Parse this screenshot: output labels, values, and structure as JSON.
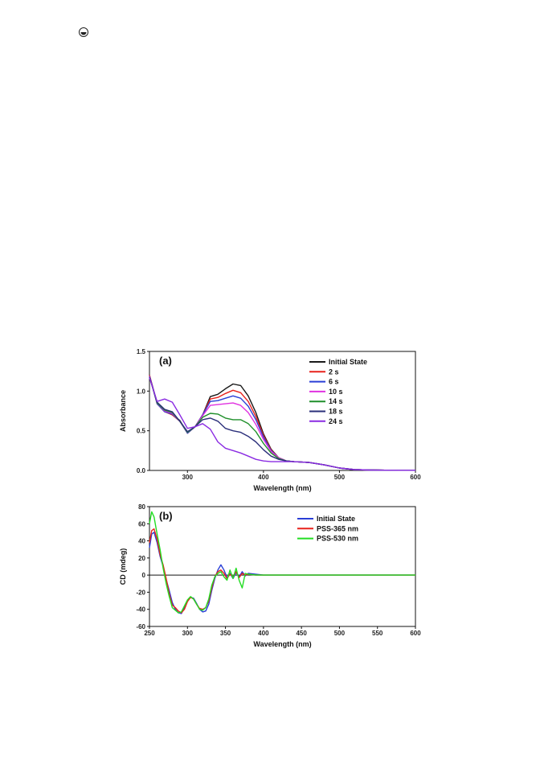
{
  "page": {
    "icon": "circle-mark-icon"
  },
  "chart_data": [
    {
      "type": "line",
      "panel_label": "(a)",
      "xlabel": "Wavelength (nm)",
      "ylabel": "Absorbance",
      "xlim": [
        250,
        600
      ],
      "ylim": [
        0.0,
        1.5
      ],
      "xticks": [
        "300",
        "400",
        "500",
        "600"
      ],
      "yticks": [
        "0.0",
        "0.5",
        "1.0",
        "1.5"
      ],
      "legend_position": "top-right",
      "grid": false,
      "series": [
        {
          "name": "Initial State",
          "color": "#1a1a1a",
          "x": [
            250,
            260,
            270,
            280,
            290,
            300,
            310,
            320,
            330,
            340,
            350,
            360,
            370,
            380,
            390,
            400,
            410,
            420,
            430,
            440,
            460,
            480,
            500,
            520,
            540,
            560,
            580,
            600
          ],
          "y": [
            1.2,
            0.85,
            0.75,
            0.7,
            0.63,
            0.47,
            0.55,
            0.7,
            0.93,
            0.96,
            1.03,
            1.09,
            1.07,
            0.94,
            0.73,
            0.46,
            0.27,
            0.16,
            0.12,
            0.11,
            0.1,
            0.07,
            0.03,
            0.01,
            0.005,
            0.003,
            0.002,
            0.002
          ]
        },
        {
          "name": "2 s",
          "color": "#e8221c",
          "x": [
            250,
            260,
            270,
            280,
            290,
            300,
            310,
            320,
            330,
            340,
            350,
            360,
            370,
            380,
            390,
            400,
            410,
            420,
            430,
            440,
            460,
            480,
            500,
            520,
            540,
            560,
            580,
            600
          ],
          "y": [
            1.2,
            0.84,
            0.74,
            0.7,
            0.62,
            0.47,
            0.55,
            0.7,
            0.9,
            0.92,
            0.97,
            1.01,
            0.98,
            0.87,
            0.68,
            0.44,
            0.26,
            0.16,
            0.12,
            0.11,
            0.1,
            0.07,
            0.03,
            0.01,
            0.005,
            0.003,
            0.002,
            0.002
          ]
        },
        {
          "name": "6 s",
          "color": "#2a3fd6",
          "x": [
            250,
            260,
            270,
            280,
            290,
            300,
            310,
            320,
            330,
            340,
            350,
            360,
            370,
            380,
            390,
            400,
            410,
            420,
            430,
            440,
            460,
            480,
            500,
            520,
            540,
            560,
            580,
            600
          ],
          "y": [
            1.19,
            0.84,
            0.74,
            0.71,
            0.62,
            0.47,
            0.55,
            0.7,
            0.87,
            0.88,
            0.91,
            0.94,
            0.91,
            0.81,
            0.64,
            0.42,
            0.25,
            0.16,
            0.12,
            0.11,
            0.1,
            0.07,
            0.03,
            0.01,
            0.005,
            0.003,
            0.002,
            0.002
          ]
        },
        {
          "name": "10 s",
          "color": "#e032e0",
          "x": [
            250,
            260,
            270,
            280,
            290,
            300,
            310,
            320,
            330,
            340,
            350,
            360,
            370,
            380,
            390,
            400,
            410,
            420,
            430,
            440,
            460,
            480,
            500,
            520,
            540,
            560,
            580,
            600
          ],
          "y": [
            1.19,
            0.85,
            0.75,
            0.72,
            0.62,
            0.48,
            0.55,
            0.69,
            0.82,
            0.83,
            0.84,
            0.85,
            0.82,
            0.73,
            0.58,
            0.39,
            0.24,
            0.16,
            0.12,
            0.11,
            0.1,
            0.07,
            0.03,
            0.01,
            0.005,
            0.003,
            0.002,
            0.002
          ]
        },
        {
          "name": "14 s",
          "color": "#1f8f2a",
          "x": [
            250,
            260,
            270,
            280,
            290,
            300,
            310,
            320,
            330,
            340,
            350,
            360,
            370,
            380,
            390,
            400,
            410,
            420,
            430,
            440,
            460,
            480,
            500,
            520,
            540,
            560,
            580,
            600
          ],
          "y": [
            1.18,
            0.85,
            0.76,
            0.73,
            0.62,
            0.48,
            0.55,
            0.67,
            0.72,
            0.71,
            0.66,
            0.64,
            0.64,
            0.59,
            0.49,
            0.34,
            0.22,
            0.15,
            0.12,
            0.11,
            0.1,
            0.07,
            0.03,
            0.01,
            0.005,
            0.003,
            0.002,
            0.002
          ]
        },
        {
          "name": "18 s",
          "color": "#2b2f7a",
          "x": [
            250,
            260,
            270,
            280,
            290,
            300,
            310,
            320,
            330,
            340,
            350,
            360,
            370,
            380,
            390,
            400,
            410,
            420,
            430,
            440,
            460,
            480,
            500,
            520,
            540,
            560,
            580,
            600
          ],
          "y": [
            1.18,
            0.86,
            0.77,
            0.74,
            0.62,
            0.49,
            0.55,
            0.64,
            0.66,
            0.62,
            0.53,
            0.5,
            0.48,
            0.43,
            0.36,
            0.26,
            0.18,
            0.14,
            0.12,
            0.11,
            0.1,
            0.07,
            0.03,
            0.01,
            0.005,
            0.003,
            0.002,
            0.002
          ]
        },
        {
          "name": "24 s",
          "color": "#8a2be2",
          "x": [
            250,
            260,
            270,
            280,
            290,
            300,
            310,
            320,
            330,
            340,
            350,
            360,
            370,
            380,
            390,
            400,
            410,
            420,
            430,
            440,
            460,
            480,
            500,
            520,
            540,
            560,
            580,
            600
          ],
          "y": [
            1.17,
            0.87,
            0.9,
            0.86,
            0.7,
            0.53,
            0.55,
            0.59,
            0.52,
            0.36,
            0.28,
            0.25,
            0.22,
            0.18,
            0.14,
            0.12,
            0.11,
            0.11,
            0.11,
            0.11,
            0.1,
            0.07,
            0.03,
            0.01,
            0.005,
            0.003,
            0.002,
            0.002
          ]
        }
      ]
    },
    {
      "type": "line",
      "panel_label": "(b)",
      "xlabel": "Wavelength (nm)",
      "ylabel": "CD (mdeg)",
      "xlim": [
        250,
        600
      ],
      "ylim": [
        -60,
        80
      ],
      "xticks": [
        "250",
        "300",
        "350",
        "400",
        "450",
        "500",
        "550",
        "600"
      ],
      "yticks": [
        "-60",
        "-40",
        "-20",
        "0",
        "20",
        "40",
        "60",
        "80"
      ],
      "zero_line": true,
      "legend_position": "top-right",
      "grid": false,
      "series": [
        {
          "name": "Initial State",
          "color": "#2a3fd6",
          "x": [
            250,
            253,
            256,
            260,
            264,
            268,
            272,
            276,
            280,
            284,
            288,
            292,
            296,
            300,
            304,
            308,
            312,
            316,
            320,
            324,
            328,
            332,
            336,
            340,
            344,
            348,
            352,
            356,
            360,
            364,
            368,
            372,
            376,
            380,
            390,
            400,
            450,
            500,
            550,
            600
          ],
          "y": [
            32,
            48,
            50,
            38,
            22,
            10,
            -5,
            -18,
            -32,
            -40,
            -44,
            -45,
            -38,
            -30,
            -26,
            -27,
            -33,
            -40,
            -43,
            -42,
            -34,
            -18,
            -4,
            6,
            12,
            6,
            -3,
            2,
            -4,
            3,
            -2,
            4,
            -1,
            2,
            1,
            0,
            0,
            0,
            0,
            0
          ]
        },
        {
          "name": "PSS-365 nm",
          "color": "#e8221c",
          "x": [
            250,
            253,
            256,
            260,
            264,
            268,
            272,
            276,
            280,
            284,
            288,
            292,
            296,
            300,
            304,
            308,
            312,
            316,
            320,
            324,
            328,
            332,
            336,
            340,
            344,
            348,
            352,
            356,
            360,
            364,
            368,
            372,
            376,
            380,
            390,
            400,
            450,
            500,
            550,
            600
          ],
          "y": [
            38,
            52,
            54,
            42,
            24,
            12,
            -4,
            -22,
            -35,
            -38,
            -42,
            -44,
            -40,
            -31,
            -26,
            -28,
            -34,
            -39,
            -40,
            -38,
            -30,
            -15,
            -2,
            4,
            6,
            2,
            -4,
            1,
            -2,
            4,
            -3,
            2,
            0,
            1,
            0,
            0,
            0,
            0,
            0,
            0
          ]
        },
        {
          "name": "PSS-530 nm",
          "color": "#22dd22",
          "x": [
            250,
            253,
            256,
            260,
            264,
            268,
            272,
            276,
            280,
            284,
            288,
            292,
            296,
            300,
            304,
            308,
            312,
            316,
            320,
            324,
            328,
            332,
            336,
            340,
            344,
            348,
            352,
            356,
            360,
            364,
            368,
            372,
            376,
            380,
            390,
            400,
            450,
            500,
            550,
            600
          ],
          "y": [
            60,
            74,
            68,
            48,
            30,
            8,
            -10,
            -25,
            -38,
            -41,
            -44,
            -43,
            -36,
            -29,
            -25,
            -28,
            -34,
            -40,
            -41,
            -38,
            -28,
            -12,
            -2,
            2,
            4,
            -2,
            -6,
            6,
            -4,
            8,
            -6,
            -15,
            2,
            1,
            0,
            0,
            0,
            0,
            0,
            0
          ]
        }
      ]
    }
  ]
}
